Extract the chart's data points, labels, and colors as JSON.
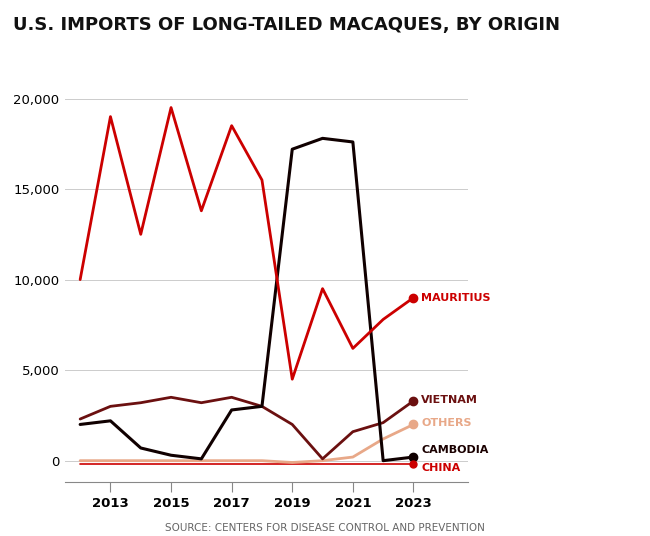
{
  "title": "U.S. IMPORTS OF LONG-TAILED MACAQUES, BY ORIGIN",
  "source": "SOURCE: CENTERS FOR DISEASE CONTROL AND PREVENTION",
  "years": [
    2012,
    2013,
    2014,
    2015,
    2016,
    2017,
    2018,
    2019,
    2020,
    2021,
    2022,
    2023
  ],
  "mauritius": [
    10000,
    19000,
    12500,
    19500,
    13800,
    18500,
    15500,
    4500,
    9500,
    6200,
    7800,
    9000
  ],
  "cambodia": [
    2000,
    2200,
    700,
    300,
    100,
    2800,
    3000,
    17200,
    17800,
    17600,
    0,
    200
  ],
  "vietnam": [
    2300,
    3000,
    3200,
    3500,
    3200,
    3500,
    3000,
    2000,
    100,
    1600,
    2100,
    3300
  ],
  "others": [
    0,
    0,
    0,
    0,
    0,
    0,
    0,
    -100,
    0,
    200,
    1200,
    2000
  ],
  "china": [
    -200,
    -200,
    -200,
    -200,
    -200,
    -200,
    -200,
    -200,
    -200,
    -200,
    -200,
    -200
  ],
  "mauritius_color": "#cc0000",
  "cambodia_color": "#100000",
  "vietnam_color": "#6b1010",
  "others_color": "#e8a888",
  "china_color": "#cc0000",
  "background_color": "#ffffff",
  "title_fontsize": 13,
  "source_fontsize": 7.5
}
